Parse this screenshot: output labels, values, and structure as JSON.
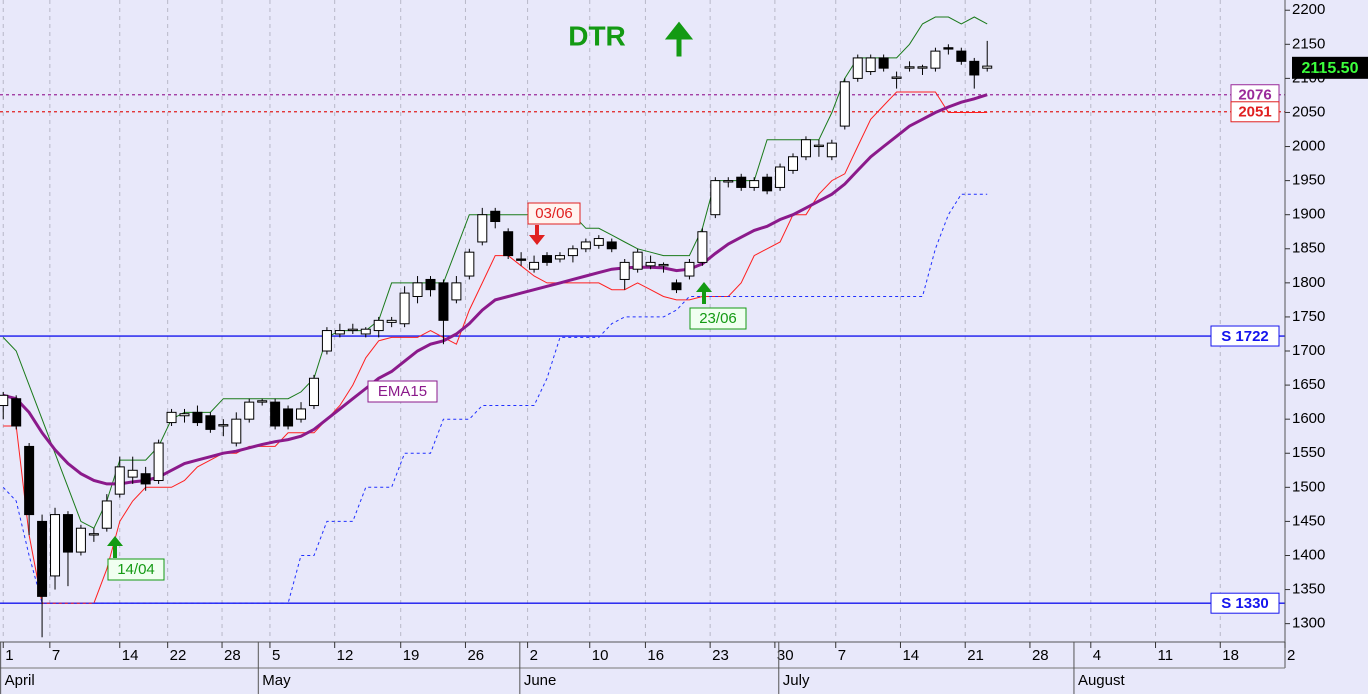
{
  "chart_data": {
    "type": "candlestick",
    "title": "DTR",
    "xlim": [
      -0.25,
      99
    ],
    "ylim": [
      1276,
      2215
    ],
    "yticks": [
      1300,
      1350,
      1400,
      1450,
      1500,
      1550,
      1600,
      1650,
      1700,
      1750,
      1800,
      1850,
      1900,
      1950,
      2000,
      2050,
      2100,
      2150,
      2200
    ],
    "xticks": [
      {
        "value": 0,
        "label": "1"
      },
      {
        "value": 3.6,
        "label": "7"
      },
      {
        "value": 9,
        "label": "14"
      },
      {
        "value": 12.7,
        "label": "22"
      },
      {
        "value": 16.9,
        "label": "28"
      },
      {
        "value": 20.6,
        "label": "5"
      },
      {
        "value": 25.6,
        "label": "12"
      },
      {
        "value": 30.7,
        "label": "19"
      },
      {
        "value": 35.7,
        "label": "26"
      },
      {
        "value": 40.5,
        "label": "2"
      },
      {
        "value": 45.3,
        "label": "10"
      },
      {
        "value": 49.6,
        "label": "16"
      },
      {
        "value": 54.6,
        "label": "23"
      },
      {
        "value": 59.6,
        "label": "30"
      },
      {
        "value": 64.3,
        "label": "7"
      },
      {
        "value": 69.3,
        "label": "14"
      },
      {
        "value": 74.3,
        "label": "21"
      },
      {
        "value": 79.3,
        "label": "28"
      },
      {
        "value": 84,
        "label": "4"
      },
      {
        "value": 89,
        "label": "11"
      },
      {
        "value": 94,
        "label": "18"
      },
      {
        "value": 99,
        "label": "2"
      }
    ],
    "months": [
      {
        "value": -0.2,
        "label": "April"
      },
      {
        "value": 19.7,
        "label": "May"
      },
      {
        "value": 39.9,
        "label": "June"
      },
      {
        "value": 59.9,
        "label": "July"
      },
      {
        "value": 82.7,
        "label": "August"
      }
    ],
    "grid": true,
    "candles": [
      {
        "open": 1620,
        "high": 1640,
        "low": 1600,
        "close": 1635
      },
      {
        "open": 1630,
        "high": 1635,
        "low": 1585,
        "close": 1590
      },
      {
        "open": 1560,
        "high": 1565,
        "low": 1430,
        "close": 1460
      },
      {
        "open": 1450,
        "high": 1460,
        "low": 1280,
        "close": 1340
      },
      {
        "open": 1370,
        "high": 1470,
        "low": 1350,
        "close": 1460
      },
      {
        "open": 1460,
        "high": 1465,
        "low": 1355,
        "close": 1405
      },
      {
        "open": 1405,
        "high": 1445,
        "low": 1400,
        "close": 1440
      },
      {
        "open": 1430,
        "high": 1440,
        "low": 1420,
        "close": 1432
      },
      {
        "open": 1440,
        "high": 1490,
        "low": 1435,
        "close": 1480
      },
      {
        "open": 1490,
        "high": 1545,
        "low": 1485,
        "close": 1530
      },
      {
        "open": 1515,
        "high": 1545,
        "low": 1505,
        "close": 1525
      },
      {
        "open": 1520,
        "high": 1530,
        "low": 1495,
        "close": 1505
      },
      {
        "open": 1510,
        "high": 1570,
        "low": 1505,
        "close": 1565
      },
      {
        "open": 1595,
        "high": 1615,
        "low": 1590,
        "close": 1610
      },
      {
        "open": 1605,
        "high": 1615,
        "low": 1595,
        "close": 1608
      },
      {
        "open": 1610,
        "high": 1620,
        "low": 1590,
        "close": 1595
      },
      {
        "open": 1605,
        "high": 1610,
        "low": 1580,
        "close": 1585
      },
      {
        "open": 1590,
        "high": 1600,
        "low": 1575,
        "close": 1592
      },
      {
        "open": 1565,
        "high": 1610,
        "low": 1560,
        "close": 1600
      },
      {
        "open": 1600,
        "high": 1630,
        "low": 1595,
        "close": 1625
      },
      {
        "open": 1625,
        "high": 1630,
        "low": 1620,
        "close": 1627
      },
      {
        "open": 1625,
        "high": 1630,
        "low": 1585,
        "close": 1590
      },
      {
        "open": 1615,
        "high": 1620,
        "low": 1585,
        "close": 1590
      },
      {
        "open": 1600,
        "high": 1625,
        "low": 1595,
        "close": 1615
      },
      {
        "open": 1620,
        "high": 1665,
        "low": 1615,
        "close": 1660
      },
      {
        "open": 1700,
        "high": 1735,
        "low": 1695,
        "close": 1730
      },
      {
        "open": 1725,
        "high": 1740,
        "low": 1720,
        "close": 1730
      },
      {
        "open": 1730,
        "high": 1740,
        "low": 1725,
        "close": 1732
      },
      {
        "open": 1725,
        "high": 1735,
        "low": 1720,
        "close": 1732
      },
      {
        "open": 1730,
        "high": 1750,
        "low": 1720,
        "close": 1745
      },
      {
        "open": 1742,
        "high": 1750,
        "low": 1735,
        "close": 1745
      },
      {
        "open": 1740,
        "high": 1795,
        "low": 1735,
        "close": 1785
      },
      {
        "open": 1780,
        "high": 1810,
        "low": 1770,
        "close": 1800
      },
      {
        "open": 1805,
        "high": 1810,
        "low": 1780,
        "close": 1790
      },
      {
        "open": 1800,
        "high": 1805,
        "low": 1710,
        "close": 1745
      },
      {
        "open": 1775,
        "high": 1810,
        "low": 1770,
        "close": 1800
      },
      {
        "open": 1810,
        "high": 1850,
        "low": 1805,
        "close": 1845
      },
      {
        "open": 1860,
        "high": 1910,
        "low": 1855,
        "close": 1900
      },
      {
        "open": 1905,
        "high": 1910,
        "low": 1880,
        "close": 1890
      },
      {
        "open": 1875,
        "high": 1880,
        "low": 1835,
        "close": 1840
      },
      {
        "open": 1835,
        "high": 1845,
        "low": 1825,
        "close": 1833
      },
      {
        "open": 1820,
        "high": 1840,
        "low": 1815,
        "close": 1830
      },
      {
        "open": 1840,
        "high": 1845,
        "low": 1825,
        "close": 1830
      },
      {
        "open": 1835,
        "high": 1845,
        "low": 1830,
        "close": 1840
      },
      {
        "open": 1840,
        "high": 1855,
        "low": 1830,
        "close": 1850
      },
      {
        "open": 1850,
        "high": 1865,
        "low": 1845,
        "close": 1860
      },
      {
        "open": 1855,
        "high": 1870,
        "low": 1850,
        "close": 1865
      },
      {
        "open": 1860,
        "high": 1865,
        "low": 1845,
        "close": 1850
      },
      {
        "open": 1805,
        "high": 1835,
        "low": 1790,
        "close": 1830
      },
      {
        "open": 1820,
        "high": 1850,
        "low": 1815,
        "close": 1845
      },
      {
        "open": 1825,
        "high": 1840,
        "low": 1820,
        "close": 1830
      },
      {
        "open": 1825,
        "high": 1830,
        "low": 1815,
        "close": 1827
      },
      {
        "open": 1800,
        "high": 1805,
        "low": 1785,
        "close": 1790
      },
      {
        "open": 1810,
        "high": 1835,
        "low": 1805,
        "close": 1830
      },
      {
        "open": 1830,
        "high": 1880,
        "low": 1825,
        "close": 1875
      },
      {
        "open": 1900,
        "high": 1955,
        "low": 1895,
        "close": 1950
      },
      {
        "open": 1948,
        "high": 1955,
        "low": 1940,
        "close": 1950
      },
      {
        "open": 1955,
        "high": 1960,
        "low": 1935,
        "close": 1940
      },
      {
        "open": 1940,
        "high": 1955,
        "low": 1935,
        "close": 1950
      },
      {
        "open": 1955,
        "high": 1960,
        "low": 1930,
        "close": 1935
      },
      {
        "open": 1940,
        "high": 1975,
        "low": 1935,
        "close": 1970
      },
      {
        "open": 1965,
        "high": 1990,
        "low": 1960,
        "close": 1985
      },
      {
        "open": 1985,
        "high": 2015,
        "low": 1980,
        "close": 2010
      },
      {
        "open": 2000,
        "high": 2010,
        "low": 1985,
        "close": 2002
      },
      {
        "open": 1985,
        "high": 2010,
        "low": 1980,
        "close": 2005
      },
      {
        "open": 2030,
        "high": 2100,
        "low": 2025,
        "close": 2095
      },
      {
        "open": 2100,
        "high": 2135,
        "low": 2095,
        "close": 2130
      },
      {
        "open": 2110,
        "high": 2135,
        "low": 2105,
        "close": 2130
      },
      {
        "open": 2130,
        "high": 2135,
        "low": 2110,
        "close": 2115
      },
      {
        "open": 2100,
        "high": 2110,
        "low": 2085,
        "close": 2102
      },
      {
        "open": 2115,
        "high": 2125,
        "low": 2110,
        "close": 2117
      },
      {
        "open": 2115,
        "high": 2120,
        "low": 2105,
        "close": 2117
      },
      {
        "open": 2115,
        "high": 2145,
        "low": 2110,
        "close": 2140
      },
      {
        "open": 2145,
        "high": 2150,
        "low": 2135,
        "close": 2143
      },
      {
        "open": 2140,
        "high": 2145,
        "low": 2120,
        "close": 2125
      },
      {
        "open": 2125,
        "high": 2130,
        "low": 2085,
        "close": 2105
      },
      {
        "open": 2115,
        "high": 2155,
        "low": 2110,
        "close": 2118
      }
    ],
    "lines": [
      {
        "color": "#1a7a1a",
        "width": 1,
        "dash": "",
        "values": [
          1720,
          1700,
          1650,
          1600,
          1550,
          1500,
          1450,
          1440,
          1480,
          1540,
          1540,
          1540,
          1560,
          1600,
          1610,
          1610,
          1610,
          1630,
          1630,
          1630,
          1630,
          1630,
          1630,
          1640,
          1660,
          1720,
          1730,
          1730,
          1730,
          1745,
          1800,
          1800,
          1800,
          1800,
          1800,
          1850,
          1900,
          1900,
          1900,
          1900,
          1900,
          1900,
          1910,
          1910,
          1900,
          1880,
          1880,
          1870,
          1860,
          1850,
          1845,
          1840,
          1840,
          1840,
          1880,
          1950,
          1950,
          1950,
          1950,
          2010,
          2010,
          2010,
          2010,
          2010,
          2050,
          2100,
          2130,
          2130,
          2130,
          2130,
          2150,
          2180,
          2190,
          2190,
          2180,
          2190,
          2180
        ]
      },
      {
        "color": "#ff2020",
        "width": 1,
        "dash": "",
        "values": [
          1590,
          1590,
          1430,
          1330,
          1330,
          1330,
          1330,
          1330,
          1380,
          1450,
          1480,
          1500,
          1500,
          1500,
          1510,
          1530,
          1540,
          1550,
          1550,
          1560,
          1560,
          1560,
          1580,
          1580,
          1580,
          1600,
          1620,
          1650,
          1690,
          1715,
          1720,
          1720,
          1720,
          1730,
          1720,
          1710,
          1760,
          1800,
          1840,
          1840,
          1825,
          1810,
          1800,
          1800,
          1800,
          1800,
          1800,
          1790,
          1790,
          1800,
          1790,
          1780,
          1775,
          1775,
          1780,
          1780,
          1780,
          1800,
          1840,
          1850,
          1860,
          1900,
          1900,
          1930,
          1950,
          1960,
          2000,
          2040,
          2060,
          2080,
          2080,
          2080,
          2080,
          2050,
          2050,
          2050,
          2050
        ]
      },
      {
        "color": "#2030ff",
        "width": 1,
        "dash": "3,3",
        "values": [
          1500,
          1480,
          1400,
          1330,
          1330,
          1330,
          1330,
          1330,
          1330,
          1330,
          1330,
          1330,
          1330,
          1330,
          1330,
          1330,
          1330,
          1330,
          1330,
          1330,
          1330,
          1330,
          1330,
          1400,
          1400,
          1450,
          1450,
          1450,
          1500,
          1500,
          1500,
          1550,
          1550,
          1550,
          1600,
          1600,
          1600,
          1620,
          1620,
          1620,
          1620,
          1620,
          1660,
          1720,
          1720,
          1720,
          1720,
          1740,
          1750,
          1750,
          1750,
          1750,
          1760,
          1780,
          1780,
          1780,
          1780,
          1780,
          1780,
          1780,
          1780,
          1780,
          1780,
          1780,
          1780,
          1780,
          1780,
          1780,
          1780,
          1780,
          1780,
          1780,
          1850,
          1900,
          1930,
          1930,
          1930
        ]
      },
      {
        "color": "#8b1a8b",
        "width": 3,
        "dash": "",
        "values": [
          1635,
          1630,
          1610,
          1580,
          1555,
          1535,
          1520,
          1510,
          1505,
          1505,
          1508,
          1510,
          1515,
          1525,
          1535,
          1540,
          1545,
          1550,
          1553,
          1558,
          1563,
          1567,
          1570,
          1575,
          1585,
          1600,
          1615,
          1630,
          1645,
          1660,
          1670,
          1685,
          1700,
          1710,
          1715,
          1725,
          1740,
          1760,
          1775,
          1780,
          1785,
          1790,
          1795,
          1800,
          1805,
          1810,
          1815,
          1820,
          1822,
          1823,
          1823,
          1822,
          1818,
          1820,
          1828,
          1843,
          1857,
          1867,
          1877,
          1883,
          1893,
          1900,
          1910,
          1920,
          1930,
          1945,
          1965,
          1985,
          2000,
          2015,
          2030,
          2040,
          2050,
          2058,
          2065,
          2070,
          2076
        ]
      }
    ],
    "levels": [
      {
        "value": 2076,
        "label": "2076",
        "color": "#9a2a9a",
        "dash": "3,3"
      },
      {
        "value": 2051,
        "label": "2051",
        "color": "#e02020",
        "dash": "3,3"
      },
      {
        "value": 1722,
        "label": "S 1722",
        "color": "#1515ee",
        "dash": ""
      },
      {
        "value": 1330,
        "label": "S 1330",
        "color": "#1515ee",
        "dash": ""
      }
    ],
    "last_price": {
      "value": 2115.5,
      "label": "2115.50"
    },
    "annotations": [
      "03/06",
      "23/06",
      "14/04",
      "EMA15"
    ]
  }
}
